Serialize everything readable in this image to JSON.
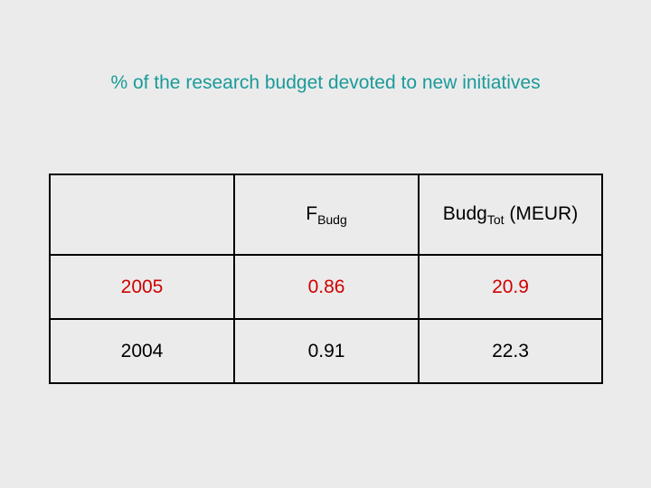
{
  "title": "% of the research budget devoted to new initiatives",
  "table": {
    "headers": [
      {
        "base": "F",
        "sub": "Budg"
      },
      {
        "base": "Budg",
        "sub": "Tot",
        "suffix": " (MEUR)"
      }
    ],
    "rows": [
      [
        "2005",
        "0.86",
        "20.9"
      ],
      [
        "2004",
        "0.91",
        "22.3"
      ]
    ]
  }
}
